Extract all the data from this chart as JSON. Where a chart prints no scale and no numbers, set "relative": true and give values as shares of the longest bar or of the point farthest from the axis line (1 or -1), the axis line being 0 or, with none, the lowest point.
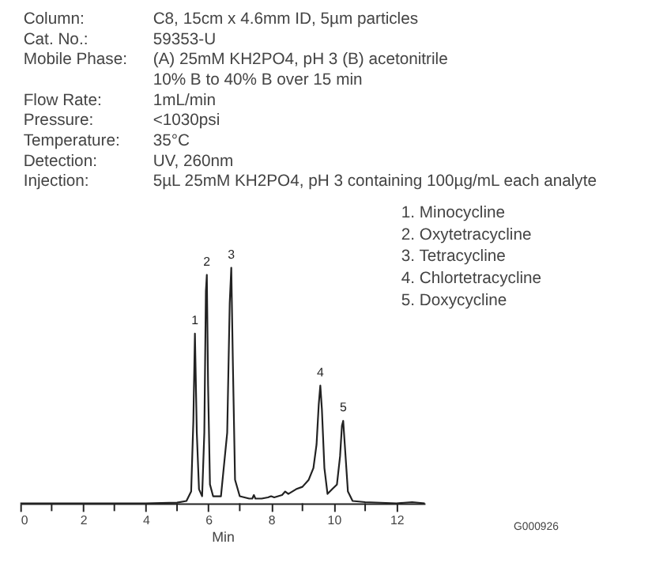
{
  "chart_data": [
    {
      "type": "other",
      "annotations": [
        "Column: C8, 15cm x 4.6mm ID, 5µm particles",
        "Cat. No.: 59353-U",
        "Mobile Phase: (A) 25mM KH2PO4, pH 3 (B) acetonitrile",
        "10% B to 40% B over 15 min",
        "Flow Rate: 1mL/min",
        "Pressure: <1030psi",
        "Temperature: 35°C",
        "Detection: UV, 260nm",
        "Injection: 5µL 25mM KH2PO4, pH 3 containing 100µg/mL each analyte"
      ]
    },
    {
      "type": "line",
      "relative": true,
      "xlabel": "Min",
      "grid": false,
      "marker": "none",
      "line_style": "solid",
      "tick_labels": "x",
      "xlim": [
        0,
        12.9
      ],
      "xticks": [
        0,
        {
          "value": 1,
          "label": null
        },
        2,
        {
          "value": 3,
          "label": null
        },
        4,
        {
          "value": 5,
          "label": null
        },
        6,
        {
          "value": 7,
          "label": null
        },
        8,
        {
          "value": 9,
          "label": null
        },
        10,
        {
          "value": 11,
          "label": null
        },
        12
      ],
      "x": [
        0,
        4.0,
        5.0,
        5.3,
        5.45,
        5.52,
        5.57,
        5.63,
        5.7,
        5.8,
        5.87,
        5.92,
        5.95,
        5.99,
        6.05,
        6.15,
        6.4,
        6.6,
        6.68,
        6.73,
        6.78,
        6.85,
        7.0,
        7.3,
        7.4,
        7.45,
        7.5,
        7.7,
        7.9,
        8.0,
        8.1,
        8.35,
        8.45,
        8.55,
        8.8,
        9.0,
        9.2,
        9.35,
        9.45,
        9.52,
        9.57,
        9.62,
        9.7,
        9.8,
        9.95,
        10.1,
        10.2,
        10.26,
        10.3,
        10.35,
        10.45,
        10.6,
        11,
        12,
        12.5,
        12.9
      ],
      "series": [
        {
          "color": "#222222",
          "values": [
            0,
            0,
            0.003,
            0.01,
            0.05,
            0.35,
            0.72,
            0.3,
            0.06,
            0.03,
            0.3,
            0.9,
            0.97,
            0.5,
            0.08,
            0.03,
            0.03,
            0.3,
            0.85,
            1.0,
            0.6,
            0.1,
            0.03,
            0.02,
            0.02,
            0.035,
            0.02,
            0.02,
            0.025,
            0.03,
            0.025,
            0.035,
            0.05,
            0.04,
            0.06,
            0.07,
            0.1,
            0.15,
            0.25,
            0.42,
            0.5,
            0.4,
            0.15,
            0.04,
            0.06,
            0.08,
            0.2,
            0.33,
            0.35,
            0.25,
            0.05,
            0.01,
            0.005,
            0,
            0.005,
            0
          ]
        }
      ],
      "annotations": [
        {
          "text": "1",
          "x": 5.57,
          "y": 0.72
        },
        {
          "text": "2",
          "x": 5.95,
          "y": 0.97
        },
        {
          "text": "3",
          "x": 6.73,
          "y": 1.0
        },
        {
          "text": "4",
          "x": 9.57,
          "y": 0.5
        },
        {
          "text": "5",
          "x": 10.3,
          "y": 0.35
        },
        "1. Minocycline",
        "2. Oxytetracycline",
        "3. Tetracycline",
        "4. Chlortetracycline",
        "5. Doxycycline",
        "G000926"
      ]
    }
  ]
}
